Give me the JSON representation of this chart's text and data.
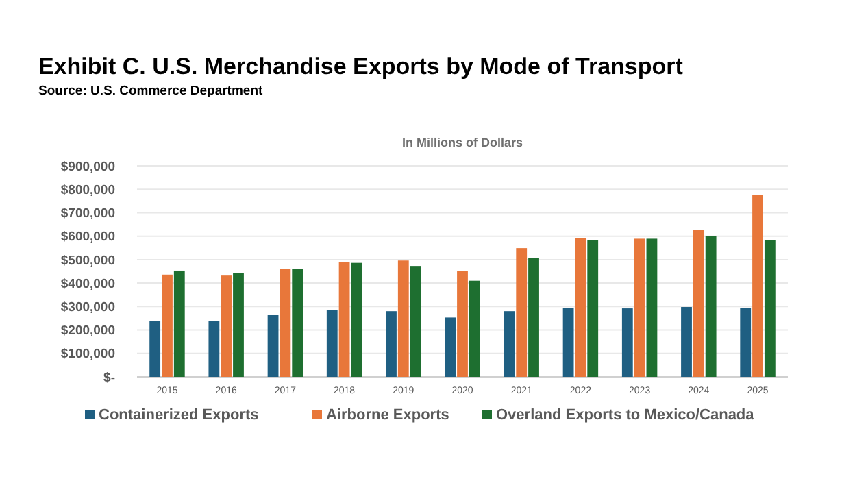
{
  "chart_data": {
    "type": "bar",
    "title": "Exhibit C. U.S. Merchandise Exports by Mode of Transport",
    "subtitle": "In Millions of Dollars",
    "annotations": [
      "Source: U.S. Commerce Department"
    ],
    "categories": [
      "2015",
      "2016",
      "2017",
      "2018",
      "2019",
      "2020",
      "2021",
      "2022",
      "2023",
      "2024",
      "2025"
    ],
    "series": [
      {
        "name": "Containerized Exports",
        "color": "#1f5f82",
        "values": [
          237000,
          237000,
          263000,
          286000,
          280000,
          253000,
          280000,
          294000,
          292000,
          298000,
          294000
        ]
      },
      {
        "name": "Airborne Exports",
        "color": "#e8773a",
        "values": [
          436000,
          432000,
          459000,
          490000,
          496000,
          451000,
          549000,
          593000,
          589000,
          628000,
          776000
        ]
      },
      {
        "name": "Overland Exports to Mexico/Canada",
        "color": "#1e6f30",
        "values": [
          453000,
          444000,
          461000,
          486000,
          473000,
          410000,
          508000,
          582000,
          589000,
          599000,
          584000
        ]
      }
    ],
    "ylim": [
      0,
      900000
    ],
    "yticks": [
      {
        "value": 0,
        "label": "$-"
      },
      {
        "value": 100000,
        "label": "$100,000"
      },
      {
        "value": 200000,
        "label": "$200,000"
      },
      {
        "value": 300000,
        "label": "$300,000"
      },
      {
        "value": 400000,
        "label": "$400,000"
      },
      {
        "value": 500000,
        "label": "$500,000"
      },
      {
        "value": 600000,
        "label": "$600,000"
      },
      {
        "value": 700000,
        "label": "$700,000"
      },
      {
        "value": 800000,
        "label": "$800,000"
      },
      {
        "value": 900000,
        "label": "$900,000"
      }
    ],
    "grid": "y",
    "legend": "bottom"
  }
}
